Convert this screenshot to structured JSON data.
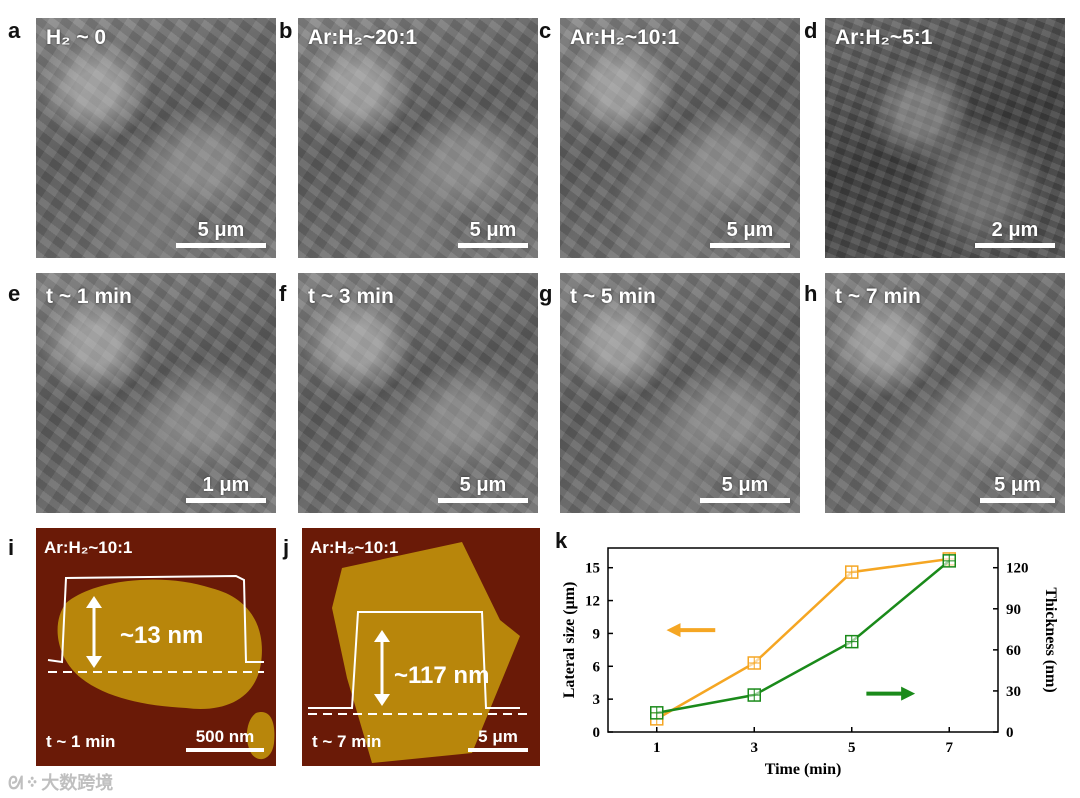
{
  "panels": {
    "a": {
      "letter": "a",
      "title": "H₂ ~ 0",
      "scale": "5 μm"
    },
    "b": {
      "letter": "b",
      "title": "Ar:H₂~20:1",
      "scale": "5 μm"
    },
    "c": {
      "letter": "c",
      "title": "Ar:H₂~10:1",
      "scale": "5 μm"
    },
    "d": {
      "letter": "d",
      "title": "Ar:H₂~5:1",
      "scale": "2 μm"
    },
    "e": {
      "letter": "e",
      "title": "t ~ 1 min",
      "scale": "1 μm"
    },
    "f": {
      "letter": "f",
      "title": "t ~ 3 min",
      "scale": "5 μm"
    },
    "g": {
      "letter": "g",
      "title": "t ~ 5 min",
      "scale": "5 μm"
    },
    "h": {
      "letter": "h",
      "title": "t ~ 7 min",
      "scale": "5 μm"
    },
    "i": {
      "letter": "i",
      "title": "Ar:H₂~10:1",
      "height": "~13 nm",
      "time": "t ~ 1 min",
      "scale": "500 nm"
    },
    "j": {
      "letter": "j",
      "title": "Ar:H₂~10:1",
      "height": "~117 nm",
      "time": "t ~ 7 min",
      "scale": "5 μm"
    },
    "k": {
      "letter": "k"
    }
  },
  "colors": {
    "lateral": "#f5a623",
    "thickness": "#1a8a1a",
    "afm_bg": "#6a1a07",
    "afm_flake": "#b8860b"
  },
  "chart_data": {
    "type": "line",
    "x": [
      1,
      3,
      5,
      7
    ],
    "xlabel": "Time (min)",
    "xticks": [
      "1",
      "3",
      "5",
      "7"
    ],
    "series": [
      {
        "axis": "left",
        "color": "orange",
        "values": [
          1.2,
          6.3,
          14.6,
          15.8
        ]
      },
      {
        "axis": "right",
        "color": "green",
        "values": [
          14,
          27,
          66,
          125
        ]
      }
    ],
    "ylabel_left": "Lateral size (μm)",
    "ylim_left": [
      0,
      16.8
    ],
    "yticks_left": [
      "0",
      "3",
      "6",
      "9",
      "12",
      "15"
    ],
    "ylabel_right": "Thickness (nm)",
    "ylim_right": [
      0,
      134.4
    ],
    "yticks_right": [
      "0",
      "30",
      "60",
      "90",
      "120"
    ],
    "grid": false
  },
  "watermark": "大数跨境"
}
